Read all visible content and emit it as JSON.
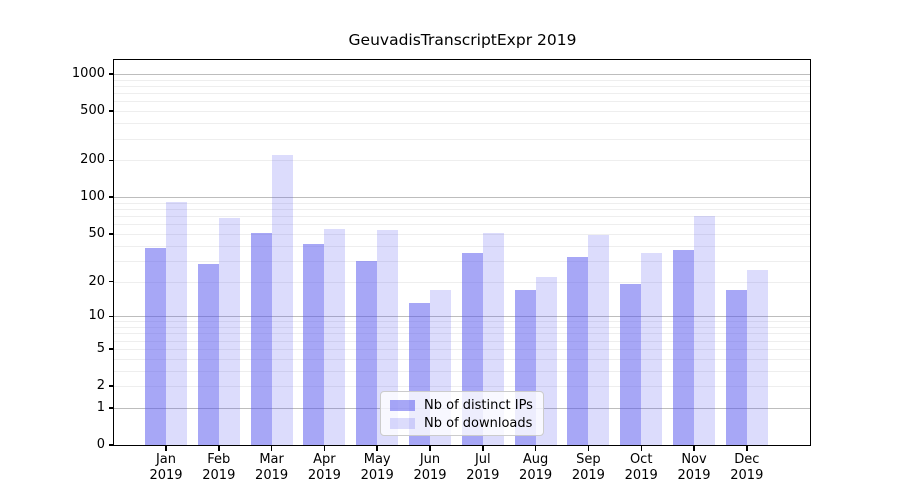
{
  "chart_data": {
    "type": "bar",
    "title": "GeuvadisTranscriptExpr 2019",
    "categories": [
      "Jan",
      "Feb",
      "Mar",
      "Apr",
      "May",
      "Jun",
      "Jul",
      "Aug",
      "Sep",
      "Oct",
      "Nov",
      "Dec"
    ],
    "x_year_label": "2019",
    "series": [
      {
        "name": "Nb of distinct IPs",
        "color": "rgba(80,80,238,0.50)",
        "values": [
          38,
          28,
          51,
          41,
          30,
          13,
          35,
          17,
          32,
          19,
          37,
          17
        ]
      },
      {
        "name": "Nb of downloads",
        "color": "rgba(80,80,238,0.20)",
        "values": [
          92,
          68,
          220,
          55,
          54,
          17,
          51,
          22,
          49,
          35,
          70,
          25
        ]
      }
    ],
    "yscale": "log10(value+1)",
    "yticks": [
      0,
      1,
      2,
      5,
      10,
      20,
      50,
      100,
      200,
      500,
      1000
    ],
    "ylim": [
      0,
      1275
    ],
    "grid": "on",
    "legend_position": "lower center inside plot",
    "colors": {
      "bar_distinct_ips": "#a8a8f2",
      "bar_downloads": "#dcdcf9",
      "major_gridline": "#bdbdbd",
      "minor_gridline": "#eeeeee",
      "spine": "#000000"
    }
  }
}
